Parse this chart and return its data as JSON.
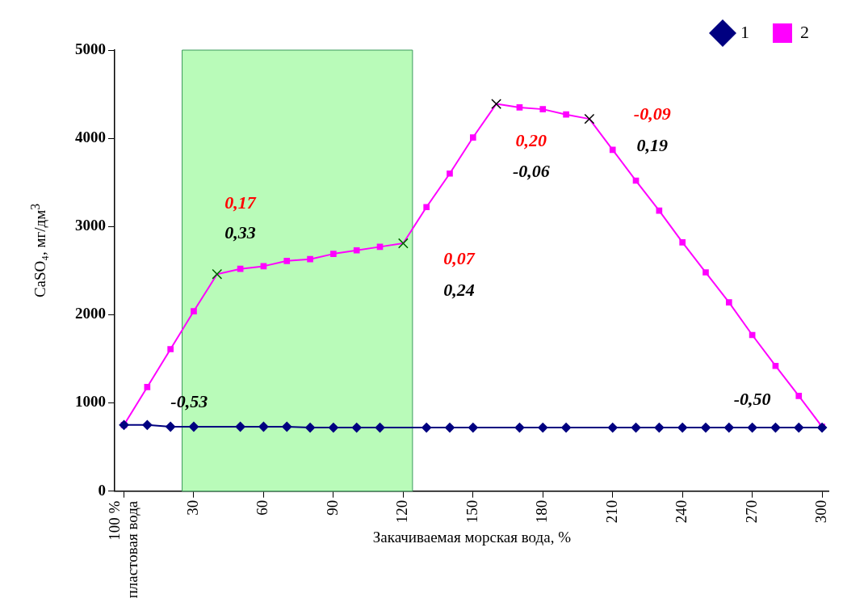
{
  "chart_data": {
    "type": "line",
    "ylabel": "CaSO₄, мг/дм$^{3}$",
    "xlabel": "Закачиваемая морская вода, %",
    "xlim": [
      -4,
      303
    ],
    "xticks": [
      {
        "value": 0,
        "label": null
      },
      30,
      60,
      90,
      120,
      150,
      180,
      210,
      240,
      270,
      300
    ],
    "ylim": [
      0,
      5000
    ],
    "yticks": [
      0,
      1000,
      2000,
      3000,
      4000,
      5000
    ],
    "grid": false,
    "legend": "top right",
    "x": [
      0,
      10,
      20,
      30,
      40,
      50,
      60,
      70,
      80,
      90,
      100,
      110,
      120,
      130,
      140,
      150,
      160,
      170,
      180,
      190,
      200,
      210,
      220,
      230,
      240,
      250,
      260,
      270,
      280,
      290,
      300
    ],
    "series": [
      {
        "name": "1",
        "color": "#000080",
        "marker": "diamond",
        "values": [
          750,
          750,
          730,
          730,
          730,
          730,
          730,
          730,
          720,
          720,
          720,
          720,
          720,
          720,
          720,
          720,
          720,
          720,
          720,
          720,
          720,
          720,
          720,
          720,
          720,
          720,
          720,
          720,
          720,
          720,
          720
        ]
      },
      {
        "name": "2",
        "color": "#ff00ff",
        "marker": "square",
        "values": [
          750,
          1180,
          1610,
          2040,
          2460,
          2520,
          2550,
          2610,
          2630,
          2690,
          2730,
          2770,
          2810,
          3220,
          3600,
          4010,
          4390,
          4350,
          4330,
          4270,
          4220,
          3870,
          3520,
          3180,
          2820,
          2480,
          2140,
          1770,
          1420,
          1080,
          730
        ]
      },
      {
        "type": "scatter",
        "marker": "cross",
        "x": [
          40,
          120,
          160,
          200
        ],
        "values": [
          2460,
          2810,
          4390,
          4220
        ],
        "colors": [
          "#006400",
          "#006400",
          "#000000",
          "#000000"
        ]
      }
    ],
    "bands": [
      {
        "axis": "x",
        "from": 25,
        "to": 124,
        "color": "#b9fbb9"
      }
    ],
    "annotations": [
      "0,17",
      "0,33",
      "0,07",
      "0,24",
      "0,20",
      "-0,06",
      "-0,09",
      "0,19",
      "-0,53",
      "-0,50",
      "100 % пластовая вода"
    ]
  }
}
